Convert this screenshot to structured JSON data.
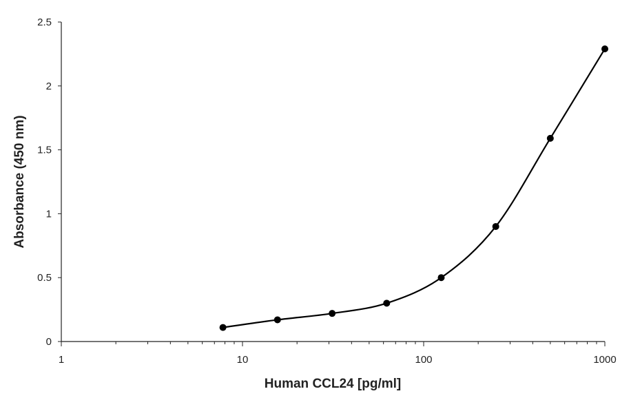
{
  "chart_data": {
    "type": "scatter",
    "xlabel": "Human CCL24 [pg/ml]",
    "ylabel": "Absorbance (450 nm)",
    "x_scale": "log",
    "xlim": [
      1,
      1000
    ],
    "ylim": [
      0,
      2.5
    ],
    "x_ticks": [
      "1",
      "10",
      "100",
      "1000"
    ],
    "y_ticks": [
      "0",
      "0.5",
      "1",
      "1.5",
      "2",
      "2.5"
    ],
    "grid": false,
    "series": [
      {
        "x": [
          7.8,
          15.6,
          31.25,
          62.5,
          125,
          250,
          500,
          1000
        ],
        "y": [
          0.11,
          0.17,
          0.22,
          0.3,
          0.5,
          0.9,
          1.59,
          2.29
        ],
        "marker": "circle",
        "smooth_line": true,
        "color": "#000000"
      }
    ]
  }
}
